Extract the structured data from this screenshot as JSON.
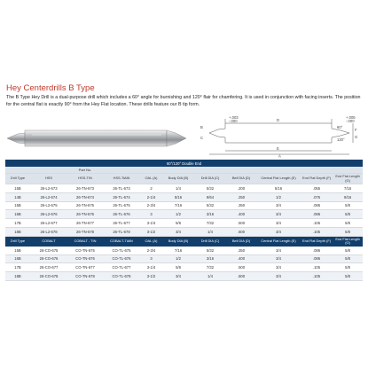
{
  "title": "Hey Centerdrills B Type",
  "description": "The B Type Hey Drill is a dual-purpose drill which includes a 60° angle for burnishing and 120° flair for chamfering. It is used in conjunction with facing inserts. The position for the central flat is exactly 90° from the Hey Flat location. These drills feature our B tip form.",
  "diagram": {
    "tol_top": "+.003",
    "tol_bot": "-.000",
    "tol_right_top": "+.005",
    "tol_right_bot": "-.000",
    "angle_60": "60°",
    "angle_120": "120°",
    "labels": [
      "B",
      "C",
      "D",
      "E",
      "F",
      "G",
      "A"
    ]
  },
  "table": {
    "band_label": "60°/120° Double End",
    "part_no_label": "Part No.",
    "headers1": [
      "Drill Type",
      "HSS",
      "HSS-TIN",
      "HSS-TiAlN",
      "OAL (A)",
      "Body DIA (B)",
      "Drill DIA (C)",
      "Bell DIA (D)",
      "Central Flat Length (E)",
      "End Flat Depth (F)",
      "End Flat Length (G)"
    ],
    "rows1": [
      [
        "15B",
        "26-L2-673",
        "26-TN-673",
        "26-TL-673",
        "2",
        "1/4",
        "5/32",
        ".200",
        "5/16",
        ".055",
        "7/16"
      ],
      [
        "14B",
        "26-L2-674",
        "26-TN-674",
        "26-TL-674",
        "2-1/4",
        "5/16",
        "9/64",
        ".250",
        "1/2",
        ".075",
        "9/16"
      ],
      [
        "15B",
        "26-L2-675",
        "26-TN-675",
        "26-TL-675",
        "2-3/4",
        "7/16",
        "5/32",
        ".350",
        "3/4",
        ".086",
        "5/8"
      ],
      [
        "16B",
        "26-L2-676",
        "26-TN-676",
        "26-TL-676",
        "3",
        "1/2",
        "3/16",
        ".400",
        "3/4",
        ".086",
        "5/8"
      ],
      [
        "17B",
        "26-L2-677",
        "26-TN-677",
        "26-TL-677",
        "3-1/4",
        "5/8",
        "7/32",
        ".500",
        "3/4",
        ".105",
        "5/8"
      ],
      [
        "18B",
        "26-L2-678",
        "26-TN-678",
        "26-TL-678",
        "3-1/2",
        "3/4",
        "1/4",
        ".600",
        "3/4",
        ".105",
        "5/8"
      ]
    ],
    "headers2": [
      "Drill Type",
      "COBALT",
      "COBALT - TIN",
      "COBALT-TiAlN",
      "OAL (A)",
      "Body DIA (B)",
      "Drill DIA (C)",
      "Bell DIA (D)",
      "Central Flat Length (E)",
      "End Flat Depth (F)",
      "End Flat Length (G)"
    ],
    "rows2": [
      [
        "15B",
        "26-CO-675",
        "CO-TN-675",
        "CO-TL-675",
        "2-3/4",
        "7/16",
        "5/32",
        ".350",
        "3/4",
        ".086",
        "5/8"
      ],
      [
        "16B",
        "26-CO-676",
        "CO-TN-676",
        "CO-TL-676",
        "3",
        "1/2",
        "3/16",
        ".400",
        "3/4",
        ".086",
        "5/8"
      ],
      [
        "17B",
        "26-CO-677",
        "CO-TN-677",
        "CO-TL-677",
        "3-1/4",
        "5/8",
        "7/32",
        ".500",
        "3/4",
        ".105",
        "5/8"
      ],
      [
        "18B",
        "26-CO-678",
        "CO-TN-678",
        "CO-TL-678",
        "3-1/2",
        "3/4",
        "1/4",
        ".600",
        "3/4",
        ".105",
        "5/8"
      ]
    ]
  }
}
